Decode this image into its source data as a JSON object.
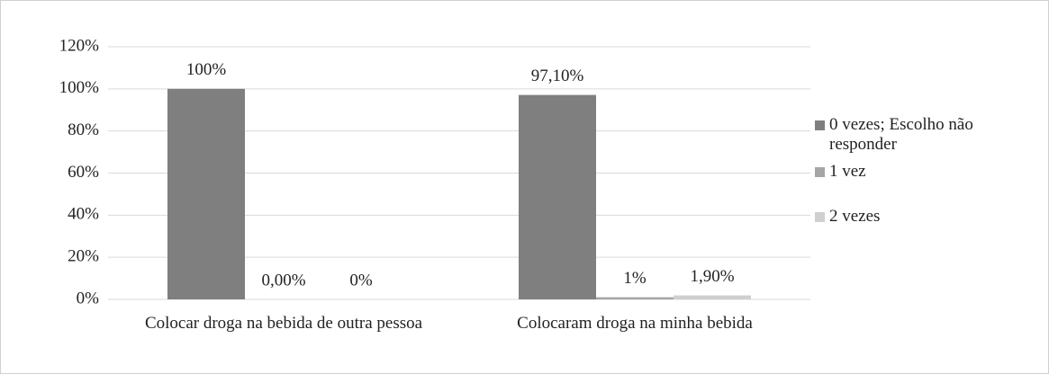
{
  "chart_data": {
    "type": "bar",
    "categories": [
      "Colocar droga na bebida de outra pessoa",
      "Colocaram droga na minha bebida"
    ],
    "series": [
      {
        "name": "0 vezes; Escolho não responder",
        "color": "#7f7f7f",
        "values": [
          100,
          97.1
        ],
        "value_labels": [
          "100%",
          "97,10%"
        ]
      },
      {
        "name": "1 vez",
        "color": "#a5a5a5",
        "values": [
          0,
          1
        ],
        "value_labels": [
          "0,00%",
          "1%"
        ]
      },
      {
        "name": "2 vezes",
        "color": "#cfcfcf",
        "values": [
          0,
          1.9
        ],
        "value_labels": [
          "0%",
          "1,90%"
        ]
      }
    ],
    "ylim": [
      0,
      120
    ],
    "yticks": [
      {
        "value": 0,
        "label": "0%"
      },
      {
        "value": 20,
        "label": "20%"
      },
      {
        "value": 40,
        "label": "40%"
      },
      {
        "value": 60,
        "label": "60%"
      },
      {
        "value": 80,
        "label": "80%"
      },
      {
        "value": 100,
        "label": "100%"
      },
      {
        "value": 120,
        "label": "120%"
      }
    ],
    "grid": true,
    "legend": "right"
  }
}
